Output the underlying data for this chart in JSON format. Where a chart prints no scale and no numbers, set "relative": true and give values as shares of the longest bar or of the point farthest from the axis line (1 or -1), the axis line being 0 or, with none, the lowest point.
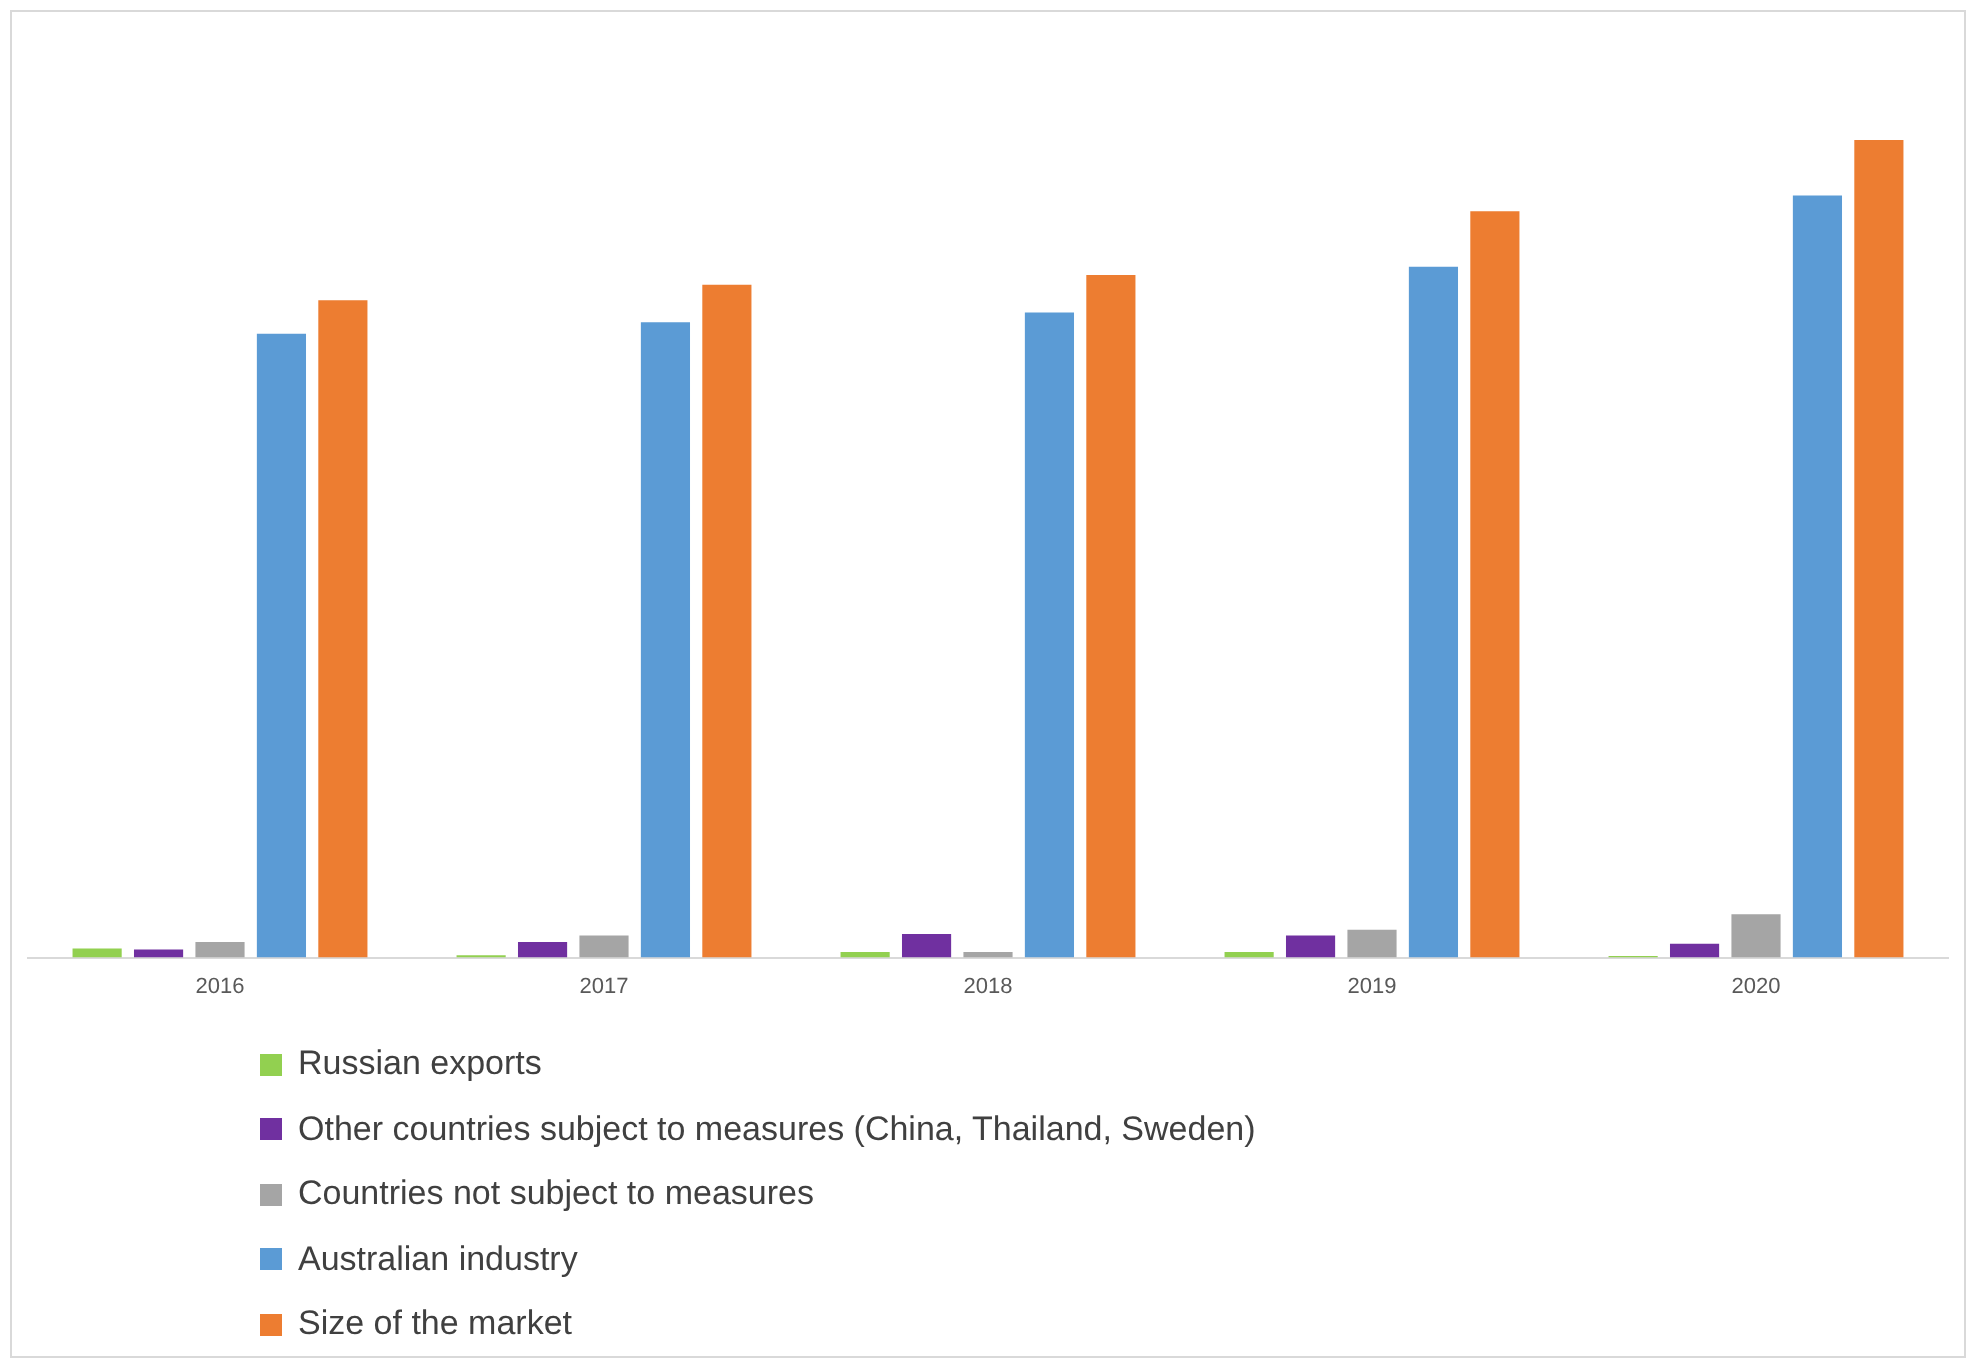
{
  "chart_data": {
    "type": "bar",
    "relative": true,
    "categories": [
      "2016",
      "2017",
      "2018",
      "2019",
      "2020"
    ],
    "legend": "bottom",
    "series": [
      {
        "name": "Russian exports",
        "color": "#92d050",
        "values": [
          0.011,
          0.003,
          0.007,
          0.007,
          0.002
        ]
      },
      {
        "name": "Other countries subject to measures (China, Thailand, Sweden)",
        "color": "#7030a0",
        "values": [
          0.01,
          0.019,
          0.029,
          0.027,
          0.017
        ]
      },
      {
        "name": "Countries not subject to measures",
        "color": "#a5a5a5",
        "values": [
          0.019,
          0.027,
          0.007,
          0.034,
          0.053
        ]
      },
      {
        "name": "Australian industry",
        "color": "#5b9bd5",
        "values": [
          0.763,
          0.777,
          0.789,
          0.845,
          0.932
        ]
      },
      {
        "name": "Size of the market",
        "color": "#ed7d31",
        "values": [
          0.804,
          0.823,
          0.835,
          0.913,
          1
        ]
      }
    ]
  }
}
